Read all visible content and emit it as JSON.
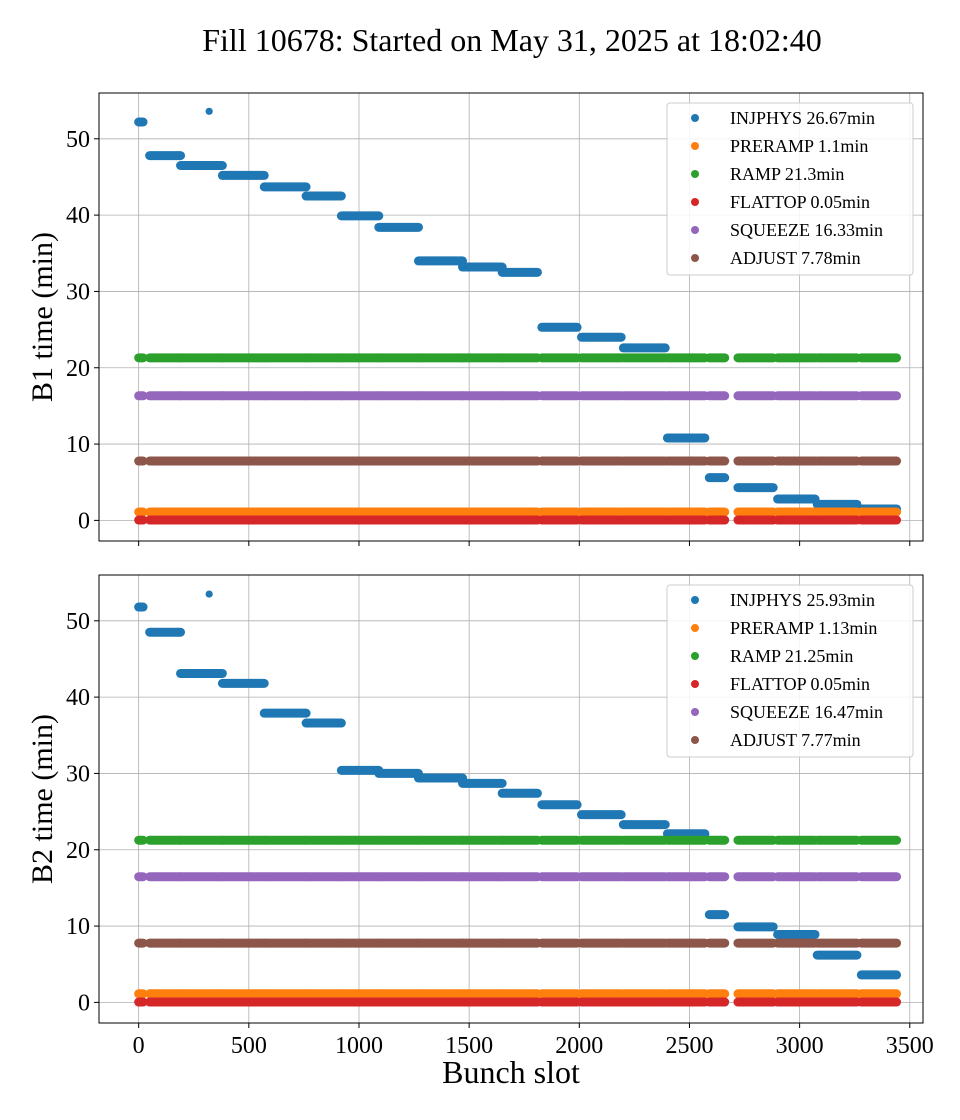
{
  "title": "Fill 10678: Started on May 31, 2025 at 18:02:40",
  "colors": {
    "INJPHYS": "#1f77b4",
    "PRERAMP": "#ff7f0e",
    "RAMP": "#2ca02c",
    "FLATTOP": "#d62728",
    "SQUEEZE": "#9467bd",
    "ADJUST": "#8c564b"
  },
  "chart_data": [
    {
      "type": "scatter",
      "id": "b1",
      "ylabel": "B1 time (min)",
      "xlabel": "",
      "xlim": [
        -180,
        3560
      ],
      "ylim": [
        -2.7,
        56
      ],
      "xticks": [
        0,
        500,
        1000,
        1500,
        2000,
        2500,
        3000,
        3500
      ],
      "xtick_labels_visible": false,
      "yticks": [
        0,
        10,
        20,
        30,
        40,
        50
      ],
      "grid": true,
      "legend_position": "top-right",
      "train_slots": [
        [
          0,
          20
        ],
        [
          50,
          190
        ],
        [
          190,
          380
        ],
        [
          380,
          570
        ],
        [
          570,
          760
        ],
        [
          760,
          920
        ],
        [
          920,
          1090
        ],
        [
          1090,
          1270
        ],
        [
          1270,
          1470
        ],
        [
          1470,
          1650
        ],
        [
          1650,
          1810
        ],
        [
          1830,
          1990
        ],
        [
          2010,
          2190
        ],
        [
          2200,
          2390
        ],
        [
          2400,
          2570
        ],
        [
          2590,
          2660
        ],
        [
          2720,
          2880
        ],
        [
          2900,
          3070
        ],
        [
          3080,
          3260
        ],
        [
          3280,
          3440
        ]
      ],
      "series": [
        {
          "name": "INJPHYS 26.67min",
          "key": "INJPHYS",
          "segments": [
            [
              0,
              20,
              52.2
            ],
            [
              320,
              320,
              53.6
            ],
            [
              50,
              190,
              47.8
            ],
            [
              190,
              380,
              46.5
            ],
            [
              380,
              570,
              45.2
            ],
            [
              570,
              760,
              43.7
            ],
            [
              760,
              920,
              42.5
            ],
            [
              920,
              1090,
              39.9
            ],
            [
              1090,
              1270,
              38.4
            ],
            [
              1270,
              1470,
              34
            ],
            [
              1470,
              1650,
              33.2
            ],
            [
              1650,
              1810,
              32.5
            ],
            [
              1830,
              1990,
              25.3
            ],
            [
              2010,
              2190,
              24
            ],
            [
              2200,
              2390,
              22.6
            ],
            [
              2400,
              2570,
              10.8
            ],
            [
              2590,
              2660,
              5.6
            ],
            [
              2720,
              2880,
              4.3
            ],
            [
              2900,
              3070,
              2.8
            ],
            [
              3080,
              3260,
              2.1
            ],
            [
              3280,
              3440,
              1.5
            ]
          ]
        },
        {
          "name": "PRERAMP 1.1min",
          "key": "PRERAMP",
          "value": 1.1
        },
        {
          "name": "RAMP 21.3min",
          "key": "RAMP",
          "value": 21.3
        },
        {
          "name": "FLATTOP 0.05min",
          "key": "FLATTOP",
          "value": 0.05
        },
        {
          "name": "SQUEEZE 16.33min",
          "key": "SQUEEZE",
          "value": 16.33
        },
        {
          "name": "ADJUST 7.78min",
          "key": "ADJUST",
          "value": 7.78
        }
      ]
    },
    {
      "type": "scatter",
      "id": "b2",
      "ylabel": "B2 time (min)",
      "xlabel": "Bunch slot",
      "xlim": [
        -180,
        3560
      ],
      "ylim": [
        -2.7,
        56
      ],
      "xticks": [
        0,
        500,
        1000,
        1500,
        2000,
        2500,
        3000,
        3500
      ],
      "xtick_labels_visible": true,
      "yticks": [
        0,
        10,
        20,
        30,
        40,
        50
      ],
      "grid": true,
      "legend_position": "top-right",
      "train_slots": [
        [
          0,
          20
        ],
        [
          50,
          190
        ],
        [
          190,
          380
        ],
        [
          380,
          570
        ],
        [
          570,
          760
        ],
        [
          760,
          920
        ],
        [
          920,
          1090
        ],
        [
          1090,
          1270
        ],
        [
          1270,
          1470
        ],
        [
          1470,
          1650
        ],
        [
          1650,
          1810
        ],
        [
          1830,
          1990
        ],
        [
          2010,
          2190
        ],
        [
          2200,
          2390
        ],
        [
          2400,
          2570
        ],
        [
          2590,
          2660
        ],
        [
          2720,
          2880
        ],
        [
          2900,
          3070
        ],
        [
          3080,
          3260
        ],
        [
          3280,
          3440
        ]
      ],
      "series": [
        {
          "name": "INJPHYS 25.93min",
          "key": "INJPHYS",
          "segments": [
            [
              0,
              20,
              51.8
            ],
            [
              320,
              320,
              53.5
            ],
            [
              50,
              190,
              48.5
            ],
            [
              190,
              380,
              43.1
            ],
            [
              380,
              570,
              41.8
            ],
            [
              570,
              760,
              37.9
            ],
            [
              760,
              920,
              36.6
            ],
            [
              920,
              1090,
              30.4
            ],
            [
              1090,
              1270,
              30
            ],
            [
              1270,
              1470,
              29.4
            ],
            [
              1470,
              1650,
              28.7
            ],
            [
              1650,
              1810,
              27.4
            ],
            [
              1830,
              1990,
              25.9
            ],
            [
              2010,
              2190,
              24.6
            ],
            [
              2200,
              2390,
              23.3
            ],
            [
              2400,
              2570,
              22.1
            ],
            [
              2590,
              2660,
              11.5
            ],
            [
              2720,
              2880,
              9.9
            ],
            [
              2900,
              3070,
              8.9
            ],
            [
              3080,
              3260,
              6.2
            ],
            [
              3280,
              3440,
              3.6
            ]
          ]
        },
        {
          "name": "PRERAMP 1.13min",
          "key": "PRERAMP",
          "value": 1.13
        },
        {
          "name": "RAMP 21.25min",
          "key": "RAMP",
          "value": 21.25
        },
        {
          "name": "FLATTOP 0.05min",
          "key": "FLATTOP",
          "value": 0.05
        },
        {
          "name": "SQUEEZE 16.47min",
          "key": "SQUEEZE",
          "value": 16.47
        },
        {
          "name": "ADJUST 7.77min",
          "key": "ADJUST",
          "value": 7.77
        }
      ]
    }
  ]
}
